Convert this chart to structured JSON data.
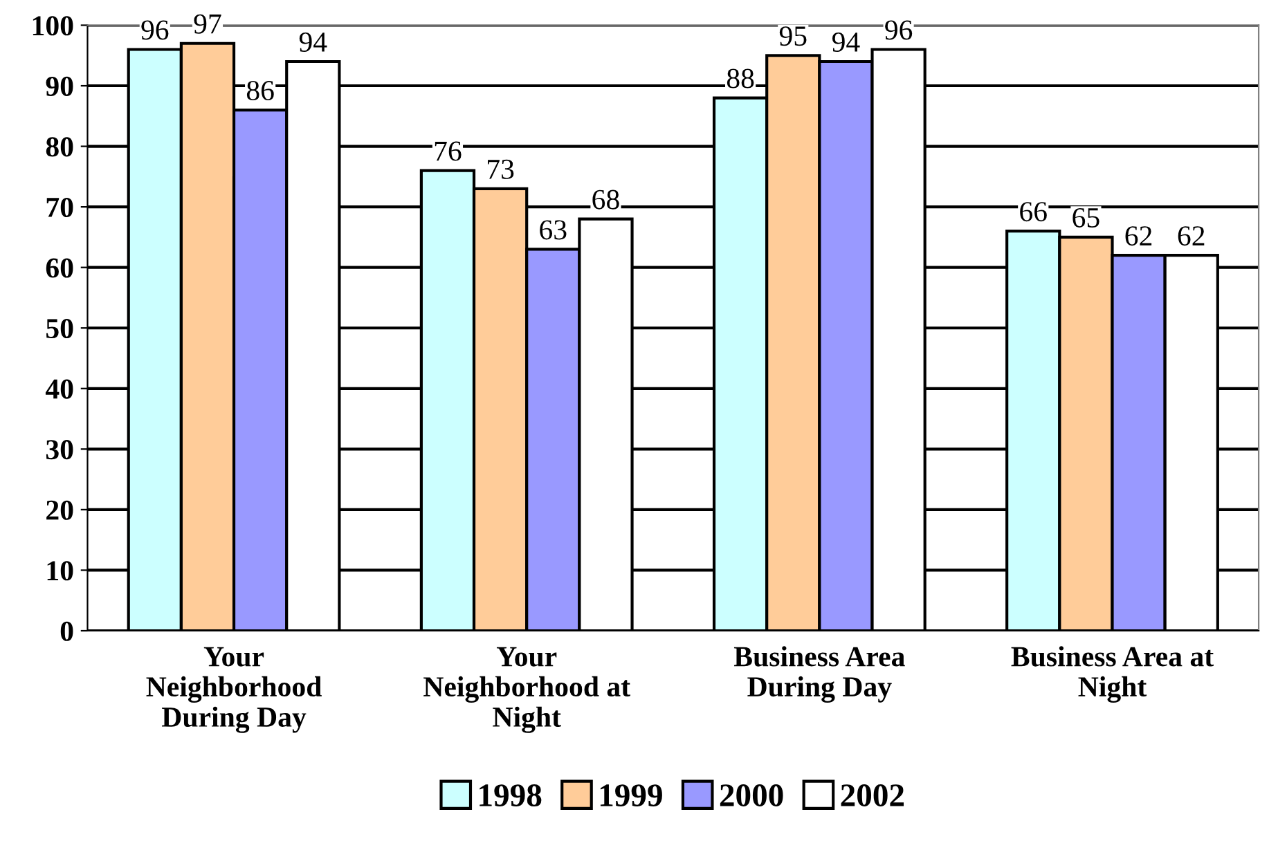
{
  "chart_data": {
    "type": "bar",
    "categories": [
      "Your Neighborhood During Day",
      "Your Neighborhood at Night",
      "Business Area During Day",
      "Business Area at Night"
    ],
    "series": [
      {
        "name": "1998",
        "color": "#ccffff",
        "values": [
          96,
          76,
          88,
          66
        ]
      },
      {
        "name": "1999",
        "color": "#ffcc99",
        "values": [
          97,
          73,
          95,
          65
        ]
      },
      {
        "name": "2000",
        "color": "#9999ff",
        "values": [
          86,
          63,
          94,
          62
        ]
      },
      {
        "name": "2002",
        "color": "#ffffff",
        "values": [
          94,
          68,
          96,
          62
        ]
      }
    ],
    "ylim": [
      0,
      100
    ],
    "yticks": [
      0,
      10,
      20,
      30,
      40,
      50,
      60,
      70,
      80,
      90,
      100
    ],
    "grid": "y",
    "legend": "bottom",
    "data_labels": true
  }
}
